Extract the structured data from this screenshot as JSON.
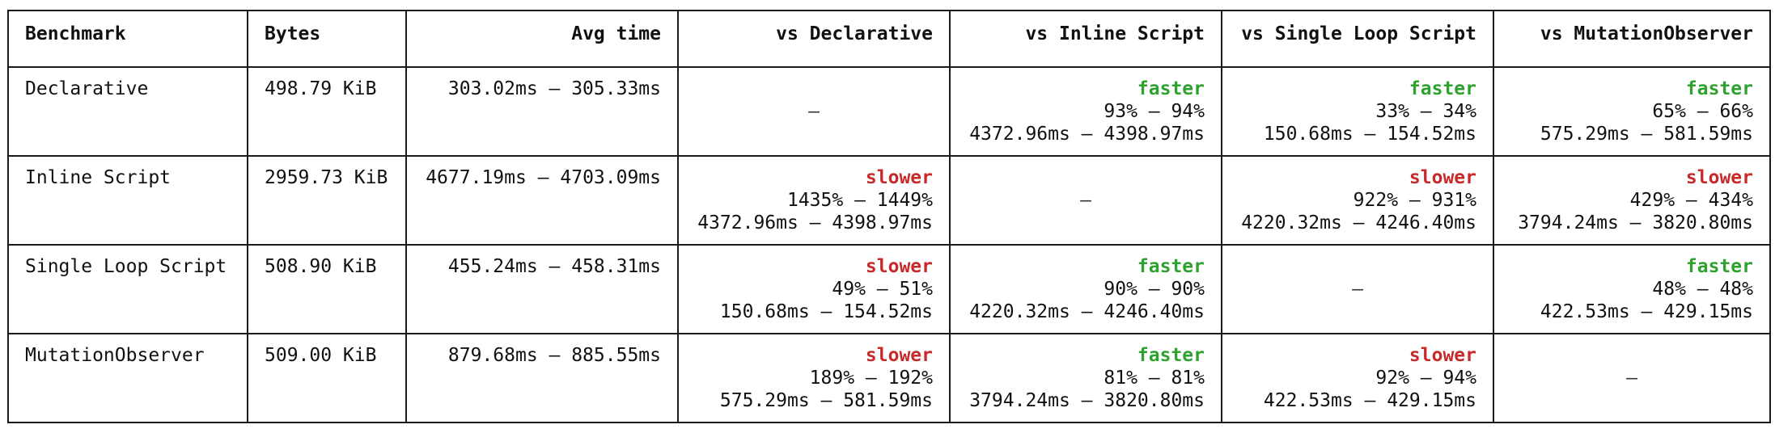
{
  "table": {
    "headers": [
      "Benchmark",
      "Bytes",
      "Avg time",
      "vs Declarative",
      "vs Inline Script",
      "vs Single Loop Script",
      "vs MutationObserver"
    ],
    "rows": [
      {
        "name": "Declarative",
        "bytes": "498.79 KiB",
        "avg": "303.02ms – 305.33ms",
        "cmp": [
          {
            "self": true,
            "text": "–"
          },
          {
            "verdict": "faster",
            "pct": "93% – 94%",
            "range": "4372.96ms – 4398.97ms"
          },
          {
            "verdict": "faster",
            "pct": "33% – 34%",
            "range": "150.68ms – 154.52ms"
          },
          {
            "verdict": "faster",
            "pct": "65% – 66%",
            "range": "575.29ms – 581.59ms"
          }
        ]
      },
      {
        "name": "Inline Script",
        "bytes": "2959.73 KiB",
        "avg": "4677.19ms – 4703.09ms",
        "cmp": [
          {
            "verdict": "slower",
            "pct": "1435% – 1449%",
            "range": "4372.96ms – 4398.97ms"
          },
          {
            "self": true,
            "text": "–"
          },
          {
            "verdict": "slower",
            "pct": "922% – 931%",
            "range": "4220.32ms – 4246.40ms"
          },
          {
            "verdict": "slower",
            "pct": "429% – 434%",
            "range": "3794.24ms – 3820.80ms"
          }
        ]
      },
      {
        "name": "Single Loop Script",
        "bytes": "508.90 KiB",
        "avg": "455.24ms – 458.31ms",
        "cmp": [
          {
            "verdict": "slower",
            "pct": "49% – 51%",
            "range": "150.68ms – 154.52ms"
          },
          {
            "verdict": "faster",
            "pct": "90% – 90%",
            "range": "4220.32ms – 4246.40ms"
          },
          {
            "self": true,
            "text": "–"
          },
          {
            "verdict": "faster",
            "pct": "48% – 48%",
            "range": "422.53ms – 429.15ms"
          }
        ]
      },
      {
        "name": "MutationObserver",
        "bytes": "509.00 KiB",
        "avg": "879.68ms – 885.55ms",
        "cmp": [
          {
            "verdict": "slower",
            "pct": "189% – 192%",
            "range": "575.29ms – 581.59ms"
          },
          {
            "verdict": "faster",
            "pct": "81% – 81%",
            "range": "3794.24ms – 3820.80ms"
          },
          {
            "verdict": "slower",
            "pct": "92% – 94%",
            "range": "422.53ms – 429.15ms"
          },
          {
            "self": true,
            "text": "–"
          }
        ]
      }
    ]
  },
  "colors": {
    "faster": "#2ea12e",
    "slower": "#c62a2a"
  }
}
